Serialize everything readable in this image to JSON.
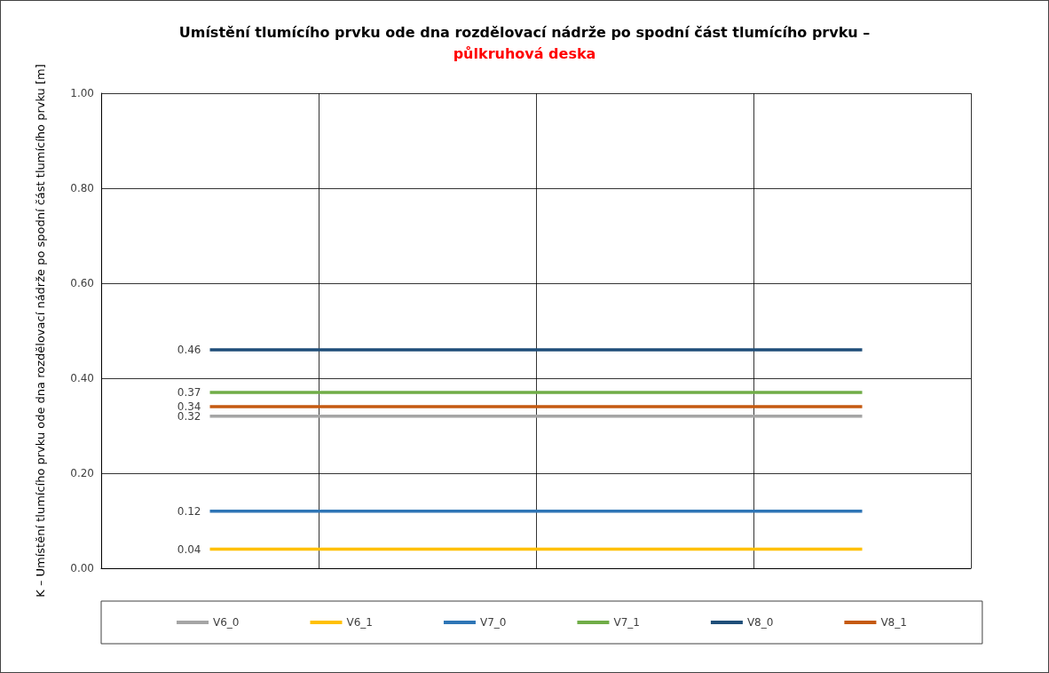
{
  "chart_data": {
    "type": "line",
    "title": "Umístění tlumícího prvku ode dna rozdělovací nádrže po spodní část tlumícího prvku –",
    "subtitle": "půlkruhová deska",
    "ylabel": "K – Umístění tlumícího prvku ode dna rozdělovací nádrže po spodní část tlumícího prvku [m]",
    "categories": [
      null,
      null,
      null,
      null
    ],
    "series": [
      {
        "name": "V6_0",
        "color": "#a5a5a5",
        "values": [
          0.32,
          0.32,
          0.32,
          0.32
        ],
        "value_labels": [
          "0.32",
          null,
          null,
          null
        ]
      },
      {
        "name": "V6_1",
        "color": "#ffc000",
        "values": [
          0.04,
          0.04,
          0.04,
          0.04
        ],
        "value_labels": [
          "0.04",
          null,
          null,
          null
        ]
      },
      {
        "name": "V7_0",
        "color": "#2e75b6",
        "values": [
          0.12,
          0.12,
          0.12,
          0.12
        ],
        "value_labels": [
          "0.12",
          null,
          null,
          null
        ]
      },
      {
        "name": "V7_1",
        "color": "#70ad47",
        "values": [
          0.37,
          0.37,
          0.37,
          0.37
        ],
        "value_labels": [
          "0.37",
          null,
          null,
          null
        ]
      },
      {
        "name": "V8_0",
        "color": "#1f4e79",
        "values": [
          0.46,
          0.46,
          0.46,
          0.46
        ],
        "value_labels": [
          "0.46",
          null,
          null,
          null
        ]
      },
      {
        "name": "V8_1",
        "color": "#c55a11",
        "values": [
          0.34,
          0.34,
          0.34,
          0.34
        ],
        "value_labels": [
          "0.34",
          null,
          null,
          null
        ]
      }
    ],
    "ylim": [
      0,
      1
    ],
    "yticks": [
      {
        "value": 0,
        "label": "0.00"
      },
      {
        "value": 0.2,
        "label": "0.20"
      },
      {
        "value": 0.4,
        "label": "0.40"
      },
      {
        "value": 0.6,
        "label": "0.60"
      },
      {
        "value": 0.8,
        "label": "0.80"
      },
      {
        "value": 1,
        "label": "1.00"
      }
    ],
    "grid": true,
    "legend": "bottom",
    "tick_labels": "y",
    "marker": "none",
    "line_style": "solid"
  }
}
